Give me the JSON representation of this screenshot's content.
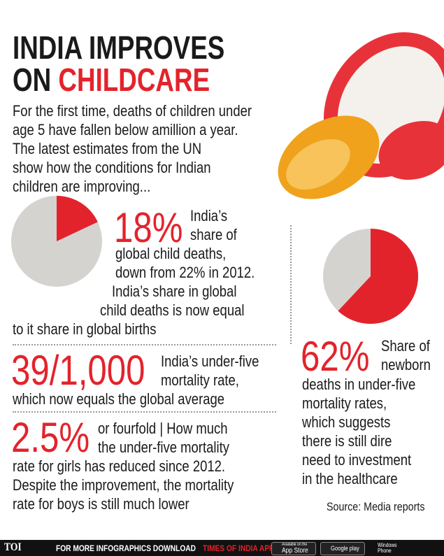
{
  "header": {
    "title_line1": "INDIA IMPROVES",
    "title_line2_prefix": "ON",
    "title_line2_highlight": "CHILDCARE"
  },
  "intro": [
    "For the first time, deaths of children under",
    "age 5 have fallen below amillion a year.",
    "The latest estimates from the UN",
    "show how the conditions for Indian",
    "children are improving..."
  ],
  "stats": [
    {
      "big": "18%",
      "pie_value": 18,
      "lines": [
        "India’s",
        "share of",
        "global child deaths,",
        "down from 22% in 2012.",
        "India’s share in global",
        "child deaths is now equal",
        "to it share in global births"
      ]
    },
    {
      "big": "39/1,000",
      "lines": [
        "India’s under-five",
        "mortality rate,",
        "which now equals the global average"
      ]
    },
    {
      "big": "2.5%",
      "lines": [
        "or fourfold | How much",
        "the under-five mortality",
        "rate for girls has reduced since 2012.",
        "Despite the improvement, the mortality",
        "rate for boys is still much lower"
      ]
    },
    {
      "big": "62%",
      "pie_value": 62,
      "lines": [
        "Share of",
        "newborn",
        "deaths in under-five",
        "mortality rates,",
        "which suggests",
        "there is still dire",
        "need to investment",
        "in the healthcare"
      ]
    }
  ],
  "pie_colors": {
    "slice": "#e3232b",
    "rest": "#d5d3cf"
  },
  "source": "Source: Media reports",
  "footer": {
    "brand": "TOI",
    "text": "FOR MORE INFOGRAPHICS DOWNLOAD",
    "app": "TIMES OF INDIA APP",
    "appstore_small": "Available on the",
    "appstore": "App Store",
    "googleplay": "Google play",
    "windows1": "Windows",
    "windows2": "Phone"
  }
}
